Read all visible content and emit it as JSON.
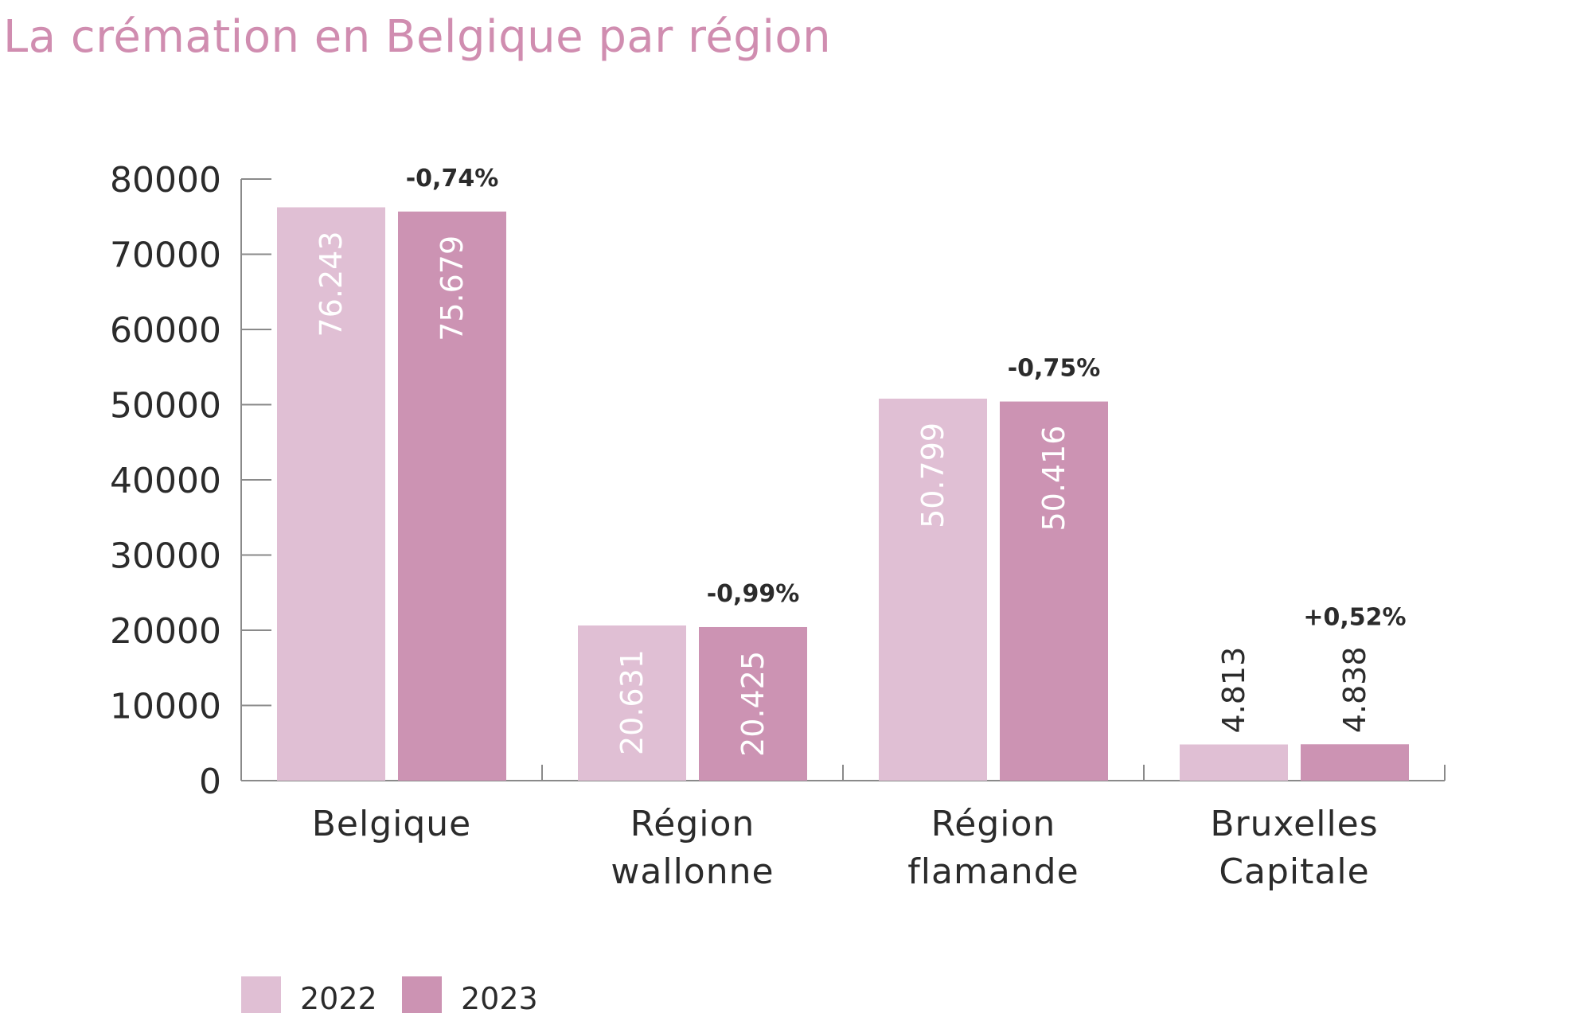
{
  "title": "La crémation en Belgique par région",
  "chart_data": {
    "type": "bar",
    "title": "La crémation en Belgique par région",
    "categories": [
      [
        "Belgique"
      ],
      [
        "Région",
        "wallonne"
      ],
      [
        "Région",
        "flamande"
      ],
      [
        "Bruxelles",
        "Capitale"
      ]
    ],
    "series": [
      {
        "name": "2022",
        "color": "#e0bfd4",
        "values": [
          76243,
          20631,
          50799,
          4813
        ],
        "labels": [
          "76.243",
          "20.631",
          "50.799",
          "4.813"
        ]
      },
      {
        "name": "2023",
        "color": "#cc93b3",
        "values": [
          75679,
          20425,
          50416,
          4838
        ],
        "labels": [
          "75.679",
          "20.425",
          "50.416",
          "4.838"
        ]
      }
    ],
    "changes": [
      "-0,74%",
      "-0,99%",
      "-0,75%",
      "+0,52%"
    ],
    "ylim": [
      0,
      80000
    ],
    "yticks": [
      0,
      10000,
      20000,
      30000,
      40000,
      50000,
      60000,
      70000,
      80000
    ],
    "xlabel": "",
    "ylabel": "",
    "grid": false,
    "legend_position": "bottom-left"
  }
}
